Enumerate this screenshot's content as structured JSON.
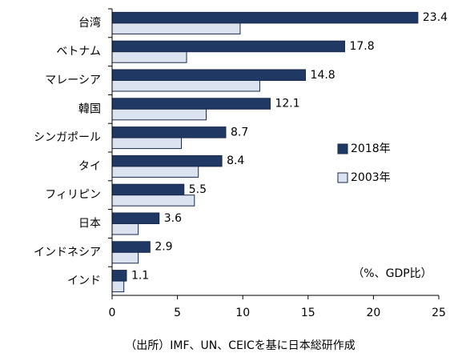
{
  "chart_data": {
    "type": "hbar",
    "categories": [
      "台湾",
      "ベトナム",
      "マレーシア",
      "韓国",
      "シンガポール",
      "タイ",
      "フィリピン",
      "日本",
      "インドネシア",
      "インド"
    ],
    "series": [
      {
        "name": "2018年",
        "color": "#1f3864",
        "values": [
          23.4,
          17.8,
          14.8,
          12.1,
          8.7,
          8.4,
          5.5,
          3.6,
          2.9,
          1.1
        ],
        "show_labels": true
      },
      {
        "name": "2003年",
        "color": "#dce3f0",
        "values": [
          9.8,
          5.7,
          11.3,
          7.2,
          5.3,
          6.6,
          6.3,
          2.0,
          2.0,
          0.9
        ]
      }
    ],
    "xlim": [
      0,
      25
    ],
    "xticks": [
      0,
      5,
      10,
      15,
      20,
      25
    ],
    "annotation": "（%、GDP比）",
    "source": "（出所）IMF、UN、CEICを基に日本総研作成",
    "legend": "right"
  }
}
